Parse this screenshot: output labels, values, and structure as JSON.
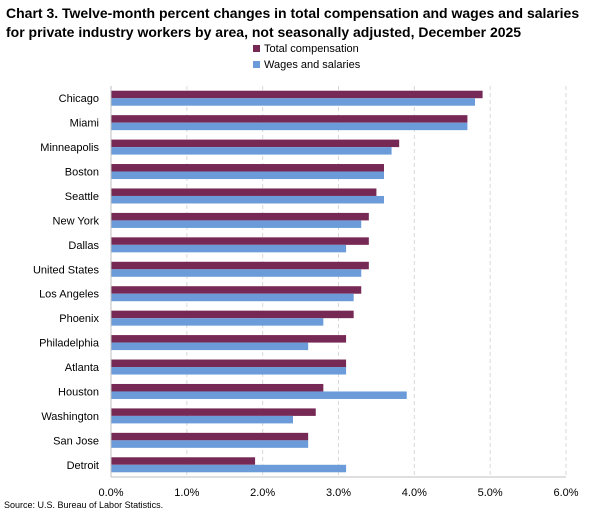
{
  "chart_data": {
    "type": "bar",
    "orientation": "horizontal",
    "title": "Chart 3. Twelve-month percent changes in total compensation and wages and salaries for private industry workers by area, not seasonally adjusted, December 2025",
    "categories": [
      "Chicago",
      "Miami",
      "Minneapolis",
      "Boston",
      "Seattle",
      "New York",
      "Dallas",
      "United States",
      "Los Angeles",
      "Phoenix",
      "Philadelphia",
      "Atlanta",
      "Houston",
      "Washington",
      "San Jose",
      "Detroit"
    ],
    "series": [
      {
        "name": "Total compensation",
        "color": "#772955",
        "values": [
          4.9,
          4.7,
          3.8,
          3.6,
          3.5,
          3.4,
          3.4,
          3.4,
          3.3,
          3.2,
          3.1,
          3.1,
          2.8,
          2.7,
          2.6,
          1.9
        ]
      },
      {
        "name": "Wages and salaries",
        "color": "#6b9bd8",
        "values": [
          4.8,
          4.7,
          3.7,
          3.6,
          3.6,
          3.3,
          3.1,
          3.3,
          3.2,
          2.8,
          2.6,
          3.1,
          3.9,
          2.4,
          2.6,
          3.1
        ]
      }
    ],
    "xlim": [
      0,
      6
    ],
    "xticks": [
      "0.0%",
      "1.0%",
      "2.0%",
      "3.0%",
      "4.0%",
      "5.0%",
      "6.0%"
    ],
    "xlabel": "",
    "ylabel": "",
    "grid": "vertical dashed",
    "legend": "top-center"
  },
  "source": "Source: U.S. Bureau of Labor Statistics."
}
